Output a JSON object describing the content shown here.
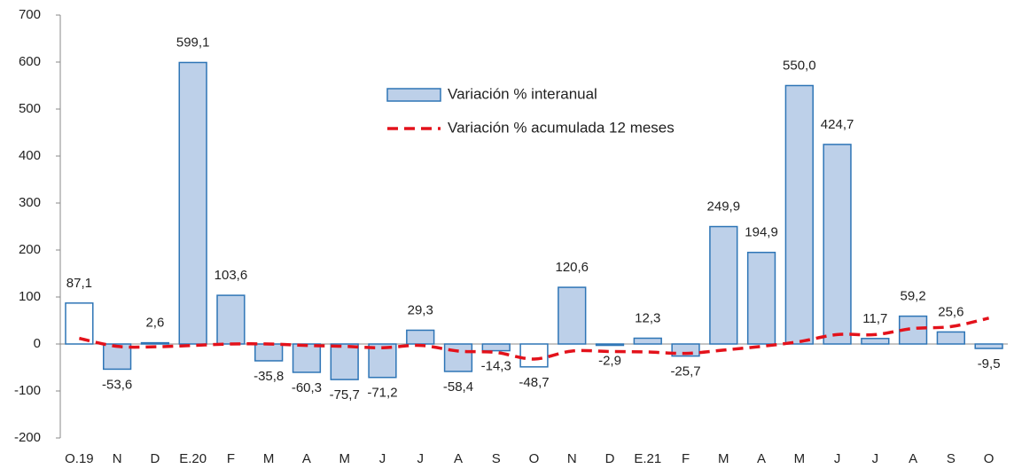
{
  "chart_data": {
    "type": "bar-line",
    "categories": [
      "O.19",
      "N",
      "D",
      "E.20",
      "F",
      "M",
      "A",
      "M",
      "J",
      "J",
      "A",
      "S",
      "O",
      "N",
      "D",
      "E.21",
      "F",
      "M",
      "A",
      "M",
      "J",
      "J",
      "A",
      "S",
      "O"
    ],
    "series": [
      {
        "name": "Variación % interanual",
        "type": "bar",
        "color": "#bdd0e9",
        "edge_color": "#2e75b6",
        "bar_colors": [
          "#ffffff",
          "#bdd0e9",
          "#bdd0e9",
          "#bdd0e9",
          "#bdd0e9",
          "#bdd0e9",
          "#bdd0e9",
          "#bdd0e9",
          "#bdd0e9",
          "#bdd0e9",
          "#bdd0e9",
          "#bdd0e9",
          "#ffffff",
          "#bdd0e9",
          "#bdd0e9",
          "#bdd0e9",
          "#bdd0e9",
          "#bdd0e9",
          "#bdd0e9",
          "#bdd0e9",
          "#bdd0e9",
          "#bdd0e9",
          "#bdd0e9",
          "#bdd0e9",
          "#bdd0e9"
        ],
        "values": [
          87.1,
          -53.6,
          2.6,
          599.1,
          103.6,
          -35.8,
          -60.3,
          -75.7,
          -71.2,
          29.3,
          -58.4,
          -14.3,
          -48.7,
          120.6,
          -2.9,
          12.3,
          -25.7,
          249.9,
          194.9,
          550.0,
          424.7,
          11.7,
          59.2,
          25.6,
          -9.5
        ],
        "value_labels": [
          "87,1",
          "-53,6",
          "2,6",
          "599,1",
          "103,6",
          "-35,8",
          "-60,3",
          "-75,7",
          "-71,2",
          "29,3",
          "-58,4",
          "-14,3",
          "-48,7",
          "120,6",
          "-2,9",
          "12,3",
          "-25,7",
          "249,9",
          "194,9",
          "550,0",
          "424,7",
          "11,7",
          "59,2",
          "25,6",
          "-9,5"
        ]
      },
      {
        "name": "Variación % acumulada 12 meses",
        "type": "line",
        "color": "#e3121b",
        "dashed": true,
        "values": [
          12,
          -5,
          -6,
          -3,
          0,
          0,
          -3,
          -5,
          -8,
          -3,
          -15,
          -18,
          -32,
          -15,
          -16,
          -17,
          -20,
          -13,
          -5,
          5,
          20,
          20,
          33,
          37,
          55
        ]
      }
    ],
    "ylim": [
      -200,
      700
    ],
    "yticks": [
      -200,
      -100,
      0,
      100,
      200,
      300,
      400,
      500,
      600,
      700
    ],
    "grid": false
  }
}
